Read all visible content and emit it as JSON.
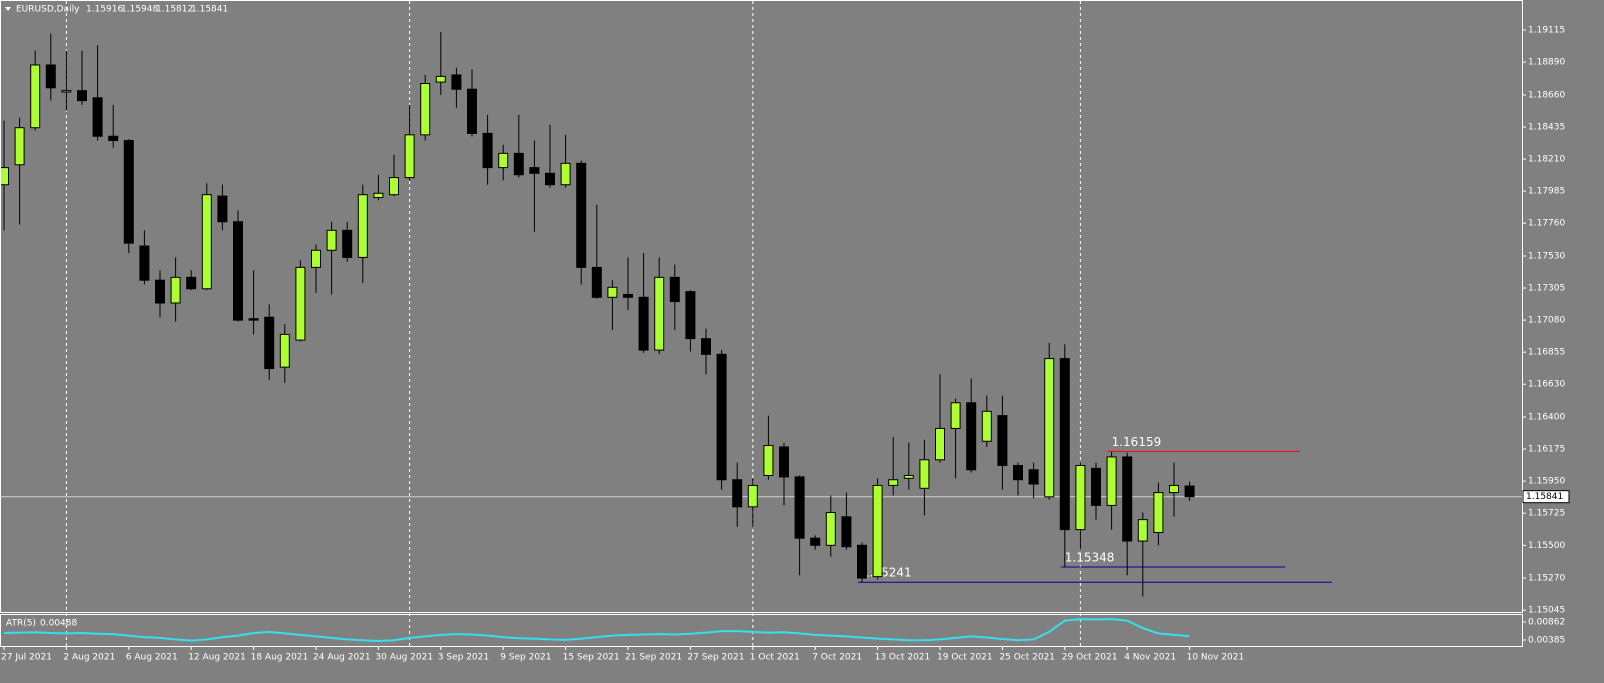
{
  "chart_data": {
    "type": "candlestick",
    "symbol": "EURUSD,Daily",
    "background": "#808080",
    "up_color": "#adff2f",
    "down_color": "#000000",
    "categories": [
      "27 Jul 2021",
      null,
      null,
      null,
      "2 Aug 2021",
      null,
      null,
      null,
      "6 Aug 2021",
      null,
      null,
      null,
      "12 Aug 2021",
      null,
      null,
      null,
      "18 Aug 2021",
      null,
      null,
      null,
      "24 Aug 2021",
      null,
      null,
      null,
      "30 Aug 2021",
      null,
      null,
      null,
      "3 Sep 2021",
      null,
      null,
      null,
      "9 Sep 2021",
      null,
      null,
      null,
      "15 Sep 2021",
      null,
      null,
      null,
      "21 Sep 2021",
      null,
      null,
      null,
      "27 Sep 2021",
      null,
      null,
      null,
      "1 Oct 2021",
      null,
      null,
      null,
      "7 Oct 2021",
      null,
      null,
      null,
      "13 Oct 2021",
      null,
      null,
      null,
      "19 Oct 2021",
      null,
      null,
      null,
      "25 Oct 2021",
      null,
      null,
      null,
      "29 Oct 2021",
      null,
      null,
      null,
      "4 Nov 2021",
      null,
      null,
      null,
      "10 Nov 2021"
    ],
    "open": [
      1.1803,
      1.1817,
      1.1843,
      1.1887,
      1.1868,
      1.1869,
      1.1864,
      1.1837,
      1.1834,
      1.176,
      1.1736,
      1.172,
      1.1738,
      1.173,
      1.1795,
      1.1777,
      1.1709,
      1.171,
      1.1675,
      1.1694,
      1.1745,
      1.1757,
      1.1771,
      1.1752,
      1.1794,
      1.1796,
      1.1808,
      1.1838,
      1.1875,
      1.188,
      1.187,
      1.1839,
      1.1815,
      1.1825,
      1.1815,
      1.1811,
      1.1803,
      1.1818,
      1.1745,
      1.1724,
      1.1726,
      1.1724,
      1.1687,
      1.1738,
      1.1728,
      1.1695,
      1.1684,
      1.1596,
      1.1577,
      1.1599,
      1.1619,
      1.1598,
      1.1555,
      1.155,
      1.157,
      1.155,
      1.1528,
      1.1592,
      1.1597,
      1.159,
      1.161,
      1.1632,
      1.165,
      1.1623,
      1.1641,
      1.1606,
      1.1603,
      1.1584,
      1.1681,
      1.1561,
      1.1604,
      1.1578,
      1.1612,
      1.1553,
      1.1559,
      1.1587,
      1.15916
    ],
    "high": [
      1.1848,
      1.185,
      1.1897,
      1.1909,
      1.1897,
      1.1897,
      1.1901,
      1.1859,
      1.1835,
      1.1771,
      1.1743,
      1.1752,
      1.1743,
      1.1804,
      1.1803,
      1.1785,
      1.1743,
      1.1719,
      1.1705,
      1.175,
      1.1761,
      1.1777,
      1.1777,
      1.1803,
      1.181,
      1.1824,
      1.1859,
      1.188,
      1.191,
      1.1885,
      1.1884,
      1.1852,
      1.1831,
      1.1852,
      1.1834,
      1.1845,
      1.1838,
      1.182,
      1.1789,
      1.1736,
      1.1752,
      1.1755,
      1.1752,
      1.1747,
      1.1729,
      1.1702,
      1.1687,
      1.1608,
      1.1597,
      1.1641,
      1.1622,
      1.1599,
      1.1557,
      1.1585,
      1.1587,
      1.1552,
      1.1597,
      1.1626,
      1.1622,
      1.1624,
      1.167,
      1.1653,
      1.1667,
      1.1655,
      1.1655,
      1.1608,
      1.1608,
      1.1692,
      1.1691,
      1.1608,
      1.1608,
      1.16159,
      1.1615,
      1.1573,
      1.1594,
      1.1608,
      1.15948
    ],
    "low": [
      1.1771,
      1.1775,
      1.1841,
      1.1862,
      1.1855,
      1.1859,
      1.1834,
      1.1829,
      1.1755,
      1.1733,
      1.171,
      1.1707,
      1.1729,
      1.1729,
      1.1771,
      1.1707,
      1.1698,
      1.1666,
      1.1664,
      1.1693,
      1.1727,
      1.1726,
      1.1749,
      1.1734,
      1.1792,
      1.1795,
      1.1806,
      1.1834,
      1.1866,
      1.1857,
      1.1837,
      1.1803,
      1.1806,
      1.1808,
      1.177,
      1.1801,
      1.1801,
      1.1733,
      1.1723,
      1.1701,
      1.1715,
      1.1685,
      1.1684,
      1.1701,
      1.1686,
      1.167,
      1.1589,
      1.1563,
      1.1563,
      1.1596,
      1.1578,
      1.1529,
      1.1547,
      1.1542,
      1.1547,
      1.15241,
      1.1526,
      1.1585,
      1.1589,
      1.1571,
      1.1608,
      1.1597,
      1.1601,
      1.1619,
      1.1589,
      1.1585,
      1.1583,
      1.1582,
      1.15348,
      1.1547,
      1.1568,
      1.1561,
      1.1529,
      1.1514,
      1.155,
      1.157,
      1.15812
    ],
    "close": [
      1.1815,
      1.1843,
      1.1887,
      1.1871,
      1.1869,
      1.1862,
      1.1837,
      1.1834,
      1.1762,
      1.1736,
      1.172,
      1.1738,
      1.173,
      1.1796,
      1.1777,
      1.1708,
      1.1708,
      1.1674,
      1.1698,
      1.1745,
      1.1757,
      1.1771,
      1.1752,
      1.1796,
      1.1797,
      1.1808,
      1.1838,
      1.1874,
      1.1879,
      1.187,
      1.1839,
      1.1815,
      1.1825,
      1.181,
      1.1811,
      1.1803,
      1.1818,
      1.1745,
      1.1724,
      1.1731,
      1.1724,
      1.1687,
      1.1738,
      1.1721,
      1.1695,
      1.1684,
      1.1596,
      1.1577,
      1.1592,
      1.162,
      1.1598,
      1.1555,
      1.155,
      1.1573,
      1.1549,
      1.1527,
      1.1592,
      1.1596,
      1.1599,
      1.161,
      1.1632,
      1.165,
      1.1603,
      1.1644,
      1.1606,
      1.1596,
      1.1593,
      1.1681,
      1.1561,
      1.1606,
      1.1578,
      1.1612,
      1.1553,
      1.1568,
      1.1587,
      1.1592,
      1.15841
    ],
    "ylim": [
      1.15032,
      1.19312
    ],
    "yticks": [
      1.19115,
      {
        "value": 1.1889,
        "label": "1.18890"
      },
      {
        "value": 1.1866,
        "label": "1.18660"
      },
      1.18435,
      {
        "value": 1.1821,
        "label": "1.18210"
      },
      1.17985,
      {
        "value": 1.1776,
        "label": "1.17760"
      },
      {
        "value": 1.1753,
        "label": "1.17530"
      },
      1.17305,
      {
        "value": 1.1708,
        "label": "1.17080"
      },
      1.16855,
      {
        "value": 1.1663,
        "label": "1.16630"
      },
      {
        "value": 1.164,
        "label": "1.16400"
      },
      1.16175,
      {
        "value": 1.1595,
        "label": "1.15950"
      },
      1.15725,
      {
        "value": 1.155,
        "label": "1.15500"
      },
      {
        "value": 1.1527,
        "label": "1.15270"
      },
      1.15045
    ],
    "levels": [
      {
        "value": 1.16159,
        "color": "#ff0000"
      },
      {
        "value": 1.15348,
        "color": "#0000a0"
      },
      {
        "value": 1.15241,
        "color": "#0000a0"
      }
    ],
    "indicator": {
      "name": "ATR(5)",
      "color": "#33e0f0",
      "values": [
        0.0057,
        0.0058,
        0.0059,
        0.0057,
        0.0056,
        0.0057,
        0.0055,
        0.0054,
        0.005,
        0.0046,
        0.0044,
        0.004,
        0.0037,
        0.004,
        0.0046,
        0.005,
        0.0057,
        0.006,
        0.0056,
        0.0052,
        0.0048,
        0.0044,
        0.004,
        0.0038,
        0.0036,
        0.0038,
        0.0044,
        0.0048,
        0.0052,
        0.0054,
        0.0053,
        0.005,
        0.0046,
        0.0043,
        0.0042,
        0.004,
        0.0039,
        0.0042,
        0.0046,
        0.005,
        0.0052,
        0.0053,
        0.0054,
        0.0053,
        0.0055,
        0.0058,
        0.0062,
        0.0062,
        0.006,
        0.0058,
        0.0059,
        0.0056,
        0.0052,
        0.005,
        0.0048,
        0.0045,
        0.0042,
        0.004,
        0.0038,
        0.0038,
        0.004,
        0.0044,
        0.0048,
        0.0045,
        0.0041,
        0.0038,
        0.004,
        0.006,
        0.009,
        0.0094,
        0.0093,
        0.0094,
        0.009,
        0.007,
        0.0056,
        0.0052,
        0.00488
      ],
      "ylim": [
        0.00226,
        0.01048
      ],
      "yticks": [
        0.00862,
        0.00385
      ]
    }
  }
}
